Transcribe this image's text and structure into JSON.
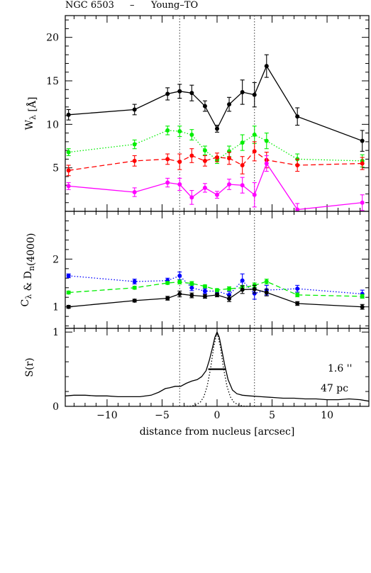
{
  "figure": {
    "title_object": "NGC 6503",
    "title_sep": "–",
    "title_class": "Young–TO",
    "xlabel": "distance from nucleus [arcsec]",
    "annotation_aperture": "1.6 ''",
    "annotation_scale": "47 pc"
  },
  "chart_data": [
    {
      "type": "line",
      "panel": "top",
      "ylabel": "W_λ [Å]",
      "xlim": [
        -13.8,
        13.8
      ],
      "ylim": [
        0,
        22.5
      ],
      "x_ticks": [
        -10,
        -5,
        0,
        5,
        10
      ],
      "y_ticks": [
        5,
        10,
        15,
        20
      ],
      "vlines": [
        -3.4,
        3.4
      ],
      "series": [
        {
          "color": "#000000",
          "dash": "solid",
          "x": [
            -13.5,
            -7.5,
            -4.5,
            -3.4,
            -2.3,
            -1.1,
            0.0,
            1.1,
            2.3,
            3.4,
            4.5,
            7.3,
            13.2
          ],
          "y": [
            11.1,
            11.7,
            13.5,
            13.8,
            13.6,
            12.1,
            9.5,
            12.3,
            13.7,
            13.4,
            16.7,
            10.9,
            8.1
          ],
          "err": [
            0.6,
            0.6,
            0.7,
            0.8,
            0.9,
            0.6,
            0.4,
            0.8,
            1.4,
            1.4,
            1.3,
            1.0,
            1.2
          ]
        },
        {
          "color": "#00ee00",
          "dash": "dotted",
          "x": [
            -13.5,
            -7.5,
            -4.5,
            -3.4,
            -2.3,
            -1.1,
            0.0,
            1.1,
            2.3,
            3.4,
            4.5,
            7.3,
            13.2
          ],
          "y": [
            6.8,
            7.7,
            9.3,
            9.2,
            8.8,
            7.0,
            5.9,
            6.9,
            7.9,
            8.8,
            8.1,
            6.0,
            5.8
          ],
          "err": [
            0.4,
            0.5,
            0.5,
            0.6,
            0.6,
            0.5,
            0.4,
            0.6,
            0.9,
            1.0,
            0.9,
            0.6,
            0.7
          ]
        },
        {
          "color": "#ff0000",
          "dash": "dashed",
          "x": [
            -13.5,
            -7.5,
            -4.5,
            -3.4,
            -2.3,
            -1.1,
            0.0,
            1.1,
            2.3,
            3.4,
            4.5,
            7.3,
            13.2
          ],
          "y": [
            4.7,
            5.8,
            6.0,
            5.7,
            6.4,
            5.8,
            6.2,
            6.1,
            5.3,
            6.9,
            5.9,
            5.3,
            5.5
          ],
          "err": [
            0.6,
            0.6,
            0.6,
            0.9,
            0.8,
            0.6,
            0.5,
            0.7,
            1.0,
            1.1,
            0.9,
            0.7,
            0.7
          ]
        },
        {
          "color": "#ff00ff",
          "dash": "solid",
          "x": [
            -13.5,
            -7.5,
            -4.5,
            -3.4,
            -2.3,
            -1.1,
            0.0,
            1.1,
            2.3,
            3.4,
            4.5,
            7.3,
            13.2
          ],
          "y": [
            2.9,
            2.2,
            3.3,
            3.1,
            1.6,
            2.7,
            1.9,
            3.1,
            3.0,
            1.9,
            5.5,
            0.2,
            1.0
          ],
          "err": [
            0.4,
            0.5,
            0.5,
            0.7,
            0.8,
            0.5,
            0.4,
            0.6,
            0.9,
            1.4,
            0.9,
            0.7,
            0.9
          ]
        }
      ]
    },
    {
      "type": "line",
      "panel": "middle",
      "ylabel": "C_λ & D_n(4000)",
      "xlim": [
        -13.8,
        13.8
      ],
      "ylim": [
        0.55,
        3.0
      ],
      "x_ticks": [
        -10,
        -5,
        0,
        5,
        10
      ],
      "y_ticks": [
        1,
        2
      ],
      "vlines": [
        -3.4,
        3.4
      ],
      "series": [
        {
          "color": "#0000ff",
          "dash": "dotted",
          "x": [
            -13.5,
            -7.5,
            -4.5,
            -3.4,
            -2.3,
            -1.1,
            0.0,
            1.1,
            2.3,
            3.4,
            4.5,
            7.3,
            13.2
          ],
          "y": [
            1.65,
            1.53,
            1.55,
            1.65,
            1.4,
            1.33,
            1.33,
            1.25,
            1.55,
            1.28,
            1.35,
            1.38,
            1.27
          ],
          "err": [
            0.04,
            0.05,
            0.05,
            0.08,
            0.06,
            0.05,
            0.05,
            0.07,
            0.14,
            0.12,
            0.1,
            0.07,
            0.08
          ]
        },
        {
          "color": "#00ee00",
          "dash": "dashed",
          "x": [
            -13.5,
            -7.5,
            -4.5,
            -3.4,
            -2.3,
            -1.1,
            0.0,
            1.1,
            2.3,
            3.4,
            4.5,
            7.3,
            13.2
          ],
          "y": [
            1.3,
            1.4,
            1.5,
            1.52,
            1.49,
            1.43,
            1.35,
            1.38,
            1.4,
            1.45,
            1.53,
            1.25,
            1.22
          ],
          "err": [
            0.03,
            0.03,
            0.03,
            0.04,
            0.04,
            0.03,
            0.03,
            0.04,
            0.05,
            0.05,
            0.05,
            0.04,
            0.04
          ]
        },
        {
          "color": "#000000",
          "dash": "solid",
          "x": [
            -13.5,
            -7.5,
            -4.5,
            -3.4,
            -2.3,
            -1.1,
            0.0,
            1.1,
            2.3,
            3.4,
            4.5,
            7.3,
            13.2
          ],
          "y": [
            1.0,
            1.13,
            1.18,
            1.27,
            1.24,
            1.22,
            1.25,
            1.17,
            1.36,
            1.37,
            1.3,
            1.07,
            1.0
          ],
          "err": [
            0.03,
            0.03,
            0.04,
            0.06,
            0.05,
            0.04,
            0.04,
            0.06,
            0.08,
            0.08,
            0.07,
            0.04,
            0.05
          ]
        }
      ]
    },
    {
      "type": "line",
      "panel": "bottom",
      "ylabel": "S(r)",
      "xlim": [
        -13.8,
        13.8
      ],
      "ylim": [
        0,
        1.05
      ],
      "x_ticks": [
        -10,
        -5,
        0,
        5,
        10
      ],
      "y_ticks": [
        0,
        1
      ],
      "vlines": [
        -3.4,
        3.4
      ],
      "fwhm": {
        "x0": -0.8,
        "x1": 0.8,
        "y": 0.5
      },
      "series": [
        {
          "color": "#000000",
          "dash": "solid",
          "x": [
            -13.8,
            -13,
            -12,
            -11,
            -10,
            -9,
            -8,
            -7,
            -6,
            -5.3,
            -4.7,
            -4.3,
            -3.8,
            -3.3,
            -2.8,
            -2.3,
            -1.8,
            -1.4,
            -1.0,
            -0.7,
            -0.4,
            -0.2,
            0.0,
            0.2,
            0.4,
            0.7,
            1.0,
            1.4,
            1.8,
            2.3,
            3.0,
            4.0,
            5.0,
            6.0,
            7.0,
            8.0,
            9.0,
            10.0,
            11.0,
            12.0,
            13.0,
            13.8
          ],
          "y": [
            0.14,
            0.15,
            0.15,
            0.14,
            0.14,
            0.13,
            0.13,
            0.13,
            0.15,
            0.19,
            0.24,
            0.25,
            0.27,
            0.27,
            0.31,
            0.34,
            0.36,
            0.4,
            0.48,
            0.62,
            0.8,
            0.93,
            1.0,
            0.93,
            0.78,
            0.55,
            0.36,
            0.22,
            0.17,
            0.15,
            0.14,
            0.13,
            0.12,
            0.11,
            0.11,
            0.1,
            0.1,
            0.09,
            0.09,
            0.1,
            0.09,
            0.07
          ]
        },
        {
          "color": "#000000",
          "dash": "dotted",
          "x": [
            -3.0,
            -2.4,
            -1.9,
            -1.5,
            -1.2,
            -0.9,
            -0.6,
            -0.3,
            0.0,
            0.3,
            0.6,
            0.9,
            1.2,
            1.5,
            1.9,
            2.4,
            3.0
          ],
          "y": [
            0.0,
            0.003,
            0.02,
            0.06,
            0.13,
            0.27,
            0.5,
            0.8,
            1.0,
            0.8,
            0.5,
            0.27,
            0.13,
            0.06,
            0.02,
            0.003,
            0.0
          ]
        }
      ]
    }
  ]
}
